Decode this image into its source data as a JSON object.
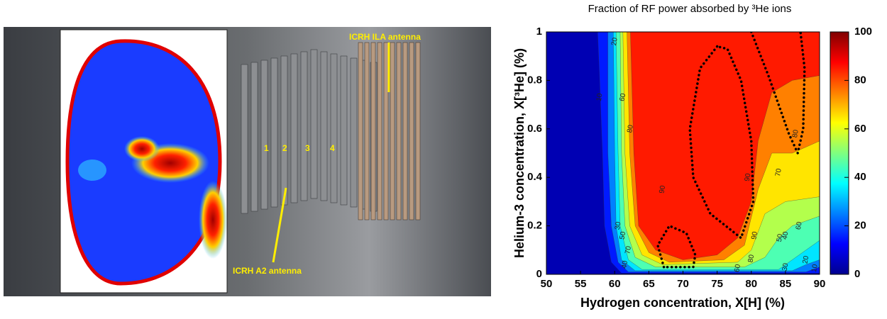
{
  "photo": {
    "numbers": [
      "1",
      "2",
      "3",
      "4"
    ],
    "antennas": [
      "ICRH ILA antenna",
      "ICRH A2 antenna"
    ]
  },
  "chart_data": {
    "type": "contour",
    "title": "Fraction of RF power absorbed by ³He ions",
    "x_label": "Hydrogen concentration, X[H] (%)",
    "y_label": "Helium-3 concentration, X[³He] (%)",
    "xlim": [
      50,
      90
    ],
    "xticks": [
      50,
      55,
      60,
      65,
      70,
      75,
      80,
      85,
      90
    ],
    "ylim": [
      0,
      1
    ],
    "yticks": [
      0,
      0.2,
      0.4,
      0.6,
      0.8,
      1
    ],
    "clim": [
      0,
      100
    ],
    "cticks": [
      0,
      20,
      40,
      60,
      80,
      100
    ],
    "levels": [
      {
        "value": 10,
        "points": [
          [
            57.5,
            1
          ],
          [
            57.8,
            0.8
          ],
          [
            58.2,
            0.5
          ],
          [
            58.5,
            0.2
          ],
          [
            59.5,
            0.05
          ],
          [
            61,
            0.005
          ],
          [
            90,
            0.005
          ],
          [
            90,
            1
          ]
        ]
      },
      {
        "value": 20,
        "points": [
          [
            59,
            1
          ],
          [
            59,
            0.5
          ],
          [
            59.5,
            0.2
          ],
          [
            60.5,
            0.05
          ],
          [
            62,
            0.01
          ],
          [
            88,
            0.01
          ],
          [
            90,
            0.03
          ],
          [
            90,
            1
          ]
        ]
      },
      {
        "value": 30,
        "points": [
          [
            59.8,
            1
          ],
          [
            60,
            0.5
          ],
          [
            60.2,
            0.2
          ],
          [
            61,
            0.06
          ],
          [
            63,
            0.015
          ],
          [
            86,
            0.015
          ],
          [
            88,
            0.04
          ],
          [
            90,
            0.06
          ],
          [
            90,
            1
          ]
        ]
      },
      {
        "value": 40,
        "points": [
          [
            60.2,
            1
          ],
          [
            60.5,
            0.5
          ],
          [
            60.8,
            0.2
          ],
          [
            62,
            0.06
          ],
          [
            64,
            0.02
          ],
          [
            84,
            0.02
          ],
          [
            86,
            0.06
          ],
          [
            88,
            0.1
          ],
          [
            90,
            0.14
          ],
          [
            90,
            1
          ]
        ]
      },
      {
        "value": 50,
        "points": [
          [
            60.8,
            1
          ],
          [
            61,
            0.5
          ],
          [
            61.5,
            0.2
          ],
          [
            63,
            0.07
          ],
          [
            66,
            0.03
          ],
          [
            79,
            0.03
          ],
          [
            82,
            0.07
          ],
          [
            84,
            0.15
          ],
          [
            86,
            0.2
          ],
          [
            88,
            0.22
          ],
          [
            90,
            0.24
          ],
          [
            90,
            1
          ]
        ]
      },
      {
        "value": 60,
        "points": [
          [
            61.2,
            1
          ],
          [
            61.5,
            0.5
          ],
          [
            62.2,
            0.2
          ],
          [
            64,
            0.08
          ],
          [
            67,
            0.04
          ],
          [
            78,
            0.05
          ],
          [
            80,
            0.1
          ],
          [
            82,
            0.25
          ],
          [
            85,
            0.3
          ],
          [
            90,
            0.32
          ],
          [
            90,
            1
          ]
        ]
      },
      {
        "value": 70,
        "points": [
          [
            61.8,
            1
          ],
          [
            62.2,
            0.5
          ],
          [
            63,
            0.2
          ],
          [
            65,
            0.09
          ],
          [
            68,
            0.05
          ],
          [
            76,
            0.06
          ],
          [
            79,
            0.12
          ],
          [
            81,
            0.35
          ],
          [
            83,
            0.5
          ],
          [
            86,
            0.5
          ],
          [
            90,
            0.55
          ],
          [
            90,
            1
          ]
        ]
      },
      {
        "value": 80,
        "points": [
          [
            62.3,
            1
          ],
          [
            62.8,
            0.5
          ],
          [
            63.5,
            0.2
          ],
          [
            66,
            0.1
          ],
          [
            70,
            0.06
          ],
          [
            75,
            0.08
          ],
          [
            78,
            0.15
          ],
          [
            80,
            0.3
          ],
          [
            81,
            0.55
          ],
          [
            83,
            0.75
          ],
          [
            86,
            0.8
          ],
          [
            90,
            0.82
          ],
          [
            90,
            1
          ]
        ]
      }
    ],
    "dotted_contours": [
      {
        "value": 90,
        "points": [
          [
            75,
            0.94
          ],
          [
            72.5,
            0.85
          ],
          [
            71,
            0.6
          ],
          [
            71.5,
            0.4
          ],
          [
            74,
            0.25
          ],
          [
            78.5,
            0.15
          ],
          [
            80.3,
            0.3
          ],
          [
            80,
            0.55
          ],
          [
            78.5,
            0.8
          ],
          [
            76.5,
            0.93
          ],
          [
            75,
            0.94
          ]
        ]
      },
      {
        "value": 90,
        "points": [
          [
            67.2,
            0.03
          ],
          [
            66.3,
            0.12
          ],
          [
            68,
            0.2
          ],
          [
            70.5,
            0.17
          ],
          [
            71.8,
            0.08
          ],
          [
            71.5,
            0.03
          ],
          [
            67.2,
            0.03
          ]
        ]
      },
      {
        "value": 90,
        "points": [
          [
            80,
            1
          ],
          [
            82.5,
            0.82
          ],
          [
            85.5,
            0.58
          ],
          [
            86.8,
            0.5
          ],
          [
            87.6,
            0.6
          ],
          [
            87.8,
            0.85
          ],
          [
            87.2,
            1
          ]
        ]
      }
    ],
    "contour_labels": [
      {
        "x": 60,
        "y": 0.96,
        "value": 20
      },
      {
        "x": 57.8,
        "y": 0.73,
        "value": 10
      },
      {
        "x": 61.2,
        "y": 0.73,
        "value": 60
      },
      {
        "x": 62.3,
        "y": 0.6,
        "value": 80
      },
      {
        "x": 67,
        "y": 0.35,
        "value": 90
      },
      {
        "x": 60.5,
        "y": 0.2,
        "value": 30
      },
      {
        "x": 61.2,
        "y": 0.16,
        "value": 50
      },
      {
        "x": 62,
        "y": 0.1,
        "value": 70
      },
      {
        "x": 61.5,
        "y": 0.04,
        "value": 40
      },
      {
        "x": 79.5,
        "y": 0.4,
        "value": 90
      },
      {
        "x": 84,
        "y": 0.42,
        "value": 70
      },
      {
        "x": 87,
        "y": 0.2,
        "value": 60
      },
      {
        "x": 85,
        "y": 0.16,
        "value": 40
      },
      {
        "x": 84.2,
        "y": 0.15,
        "value": 50
      },
      {
        "x": 80.5,
        "y": 0.16,
        "value": 90
      },
      {
        "x": 80,
        "y": 0.065,
        "value": 80
      },
      {
        "x": 78,
        "y": 0.025,
        "value": 60
      },
      {
        "x": 85,
        "y": 0.03,
        "value": 30
      },
      {
        "x": 88,
        "y": 0.06,
        "value": 20
      },
      {
        "x": 89.3,
        "y": 0.025,
        "value": 10
      },
      {
        "x": 86.5,
        "y": 0.58,
        "value": 80
      }
    ]
  }
}
